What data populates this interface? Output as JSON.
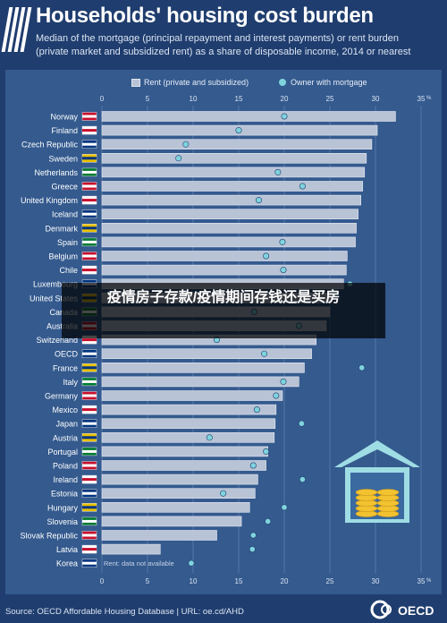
{
  "header": {
    "title": "Households' housing cost burden",
    "subtitle_line1": "Median of the mortgage (principal repayment and interest payments) or rent burden",
    "subtitle_line2": "(private market and subsidized rent) as a share of disposable income, 2014 or nearest"
  },
  "overlay": {
    "text": "疫情房子存款/疫情期间存钱还是买房"
  },
  "footer": {
    "source": "Source: OECD Affordable Housing Database | URL: oe.cd/AHD",
    "logo_text": "OECD"
  },
  "note": "Rent: data not available",
  "colors": {
    "background": "#1f3d6e",
    "panel": "#345a8e",
    "bar": "#b8c3d6",
    "dot": "#7fd3dd",
    "grid": "#5677a6"
  },
  "chart_data": {
    "type": "bar",
    "orientation": "horizontal",
    "title": "Households' housing cost burden",
    "xlim": [
      0,
      35
    ],
    "xticks": [
      0,
      5,
      10,
      15,
      20,
      25,
      30,
      35
    ],
    "x_tick_suffix": "%",
    "legend_position": "top",
    "categories": [
      "Norway",
      "Finland",
      "Czech Republic",
      "Sweden",
      "Netherlands",
      "Greece",
      "United Kingdom",
      "Iceland",
      "Denmark",
      "Spain",
      "Belgium",
      "Chile",
      "Luxembourg",
      "United States",
      "Canada",
      "Australia",
      "Switzerland",
      "OECD",
      "France",
      "Italy",
      "Germany",
      "Mexico",
      "Japan",
      "Austria",
      "Portugal",
      "Poland",
      "Ireland",
      "Estonia",
      "Hungary",
      "Slovenia",
      "Slovak Republic",
      "Latvia",
      "Korea"
    ],
    "series": [
      {
        "name": "Rent (private and subsidized)",
        "kind": "bar",
        "values": [
          32.2,
          30.2,
          29.6,
          29.0,
          28.8,
          28.6,
          28.4,
          28.1,
          27.9,
          27.8,
          26.9,
          26.8,
          26.5,
          25.2,
          25.0,
          24.6,
          23.5,
          23.0,
          22.2,
          21.6,
          19.8,
          19.1,
          19.0,
          18.9,
          18.2,
          18.0,
          17.1,
          16.8,
          16.2,
          15.3,
          12.6,
          6.4,
          null
        ]
      },
      {
        "name": "Owner with mortgage",
        "kind": "dot",
        "values": [
          20.0,
          15.0,
          9.2,
          8.4,
          19.3,
          22.0,
          17.2,
          null,
          null,
          19.8,
          18.0,
          19.9,
          27.2,
          null,
          16.7,
          21.6,
          12.6,
          17.8,
          28.5,
          19.9,
          19.1,
          17.0,
          21.9,
          11.8,
          18.0,
          16.6,
          22.0,
          13.3,
          20.0,
          18.2,
          16.6,
          16.5,
          9.8
        ]
      }
    ]
  },
  "flags": {
    "Norway": "norway-flag",
    "Finland": "finland-flag",
    "Czech Republic": "czech-flag",
    "Sweden": "sweden-flag",
    "Netherlands": "netherlands-flag",
    "Greece": "greece-flag",
    "United Kingdom": "uk-flag",
    "Iceland": "iceland-flag",
    "Denmark": "denmark-flag",
    "Spain": "spain-flag",
    "Belgium": "belgium-flag",
    "Chile": "chile-flag",
    "Luxembourg": "luxembourg-flag",
    "United States": "usa-flag",
    "Canada": "canada-flag",
    "Australia": "australia-flag",
    "Switzerland": "switzerland-flag",
    "OECD": "oecd-logo-icon",
    "France": "france-flag",
    "Italy": "italy-flag",
    "Germany": "germany-flag",
    "Mexico": "mexico-flag",
    "Japan": "japan-flag",
    "Austria": "austria-flag",
    "Portugal": "portugal-flag",
    "Poland": "poland-flag",
    "Ireland": "ireland-flag",
    "Estonia": "estonia-flag",
    "Hungary": "hungary-flag",
    "Slovenia": "slovenia-flag",
    "Slovak Republic": "slovakia-flag",
    "Latvia": "latvia-flag",
    "Korea": "korea-flag"
  }
}
